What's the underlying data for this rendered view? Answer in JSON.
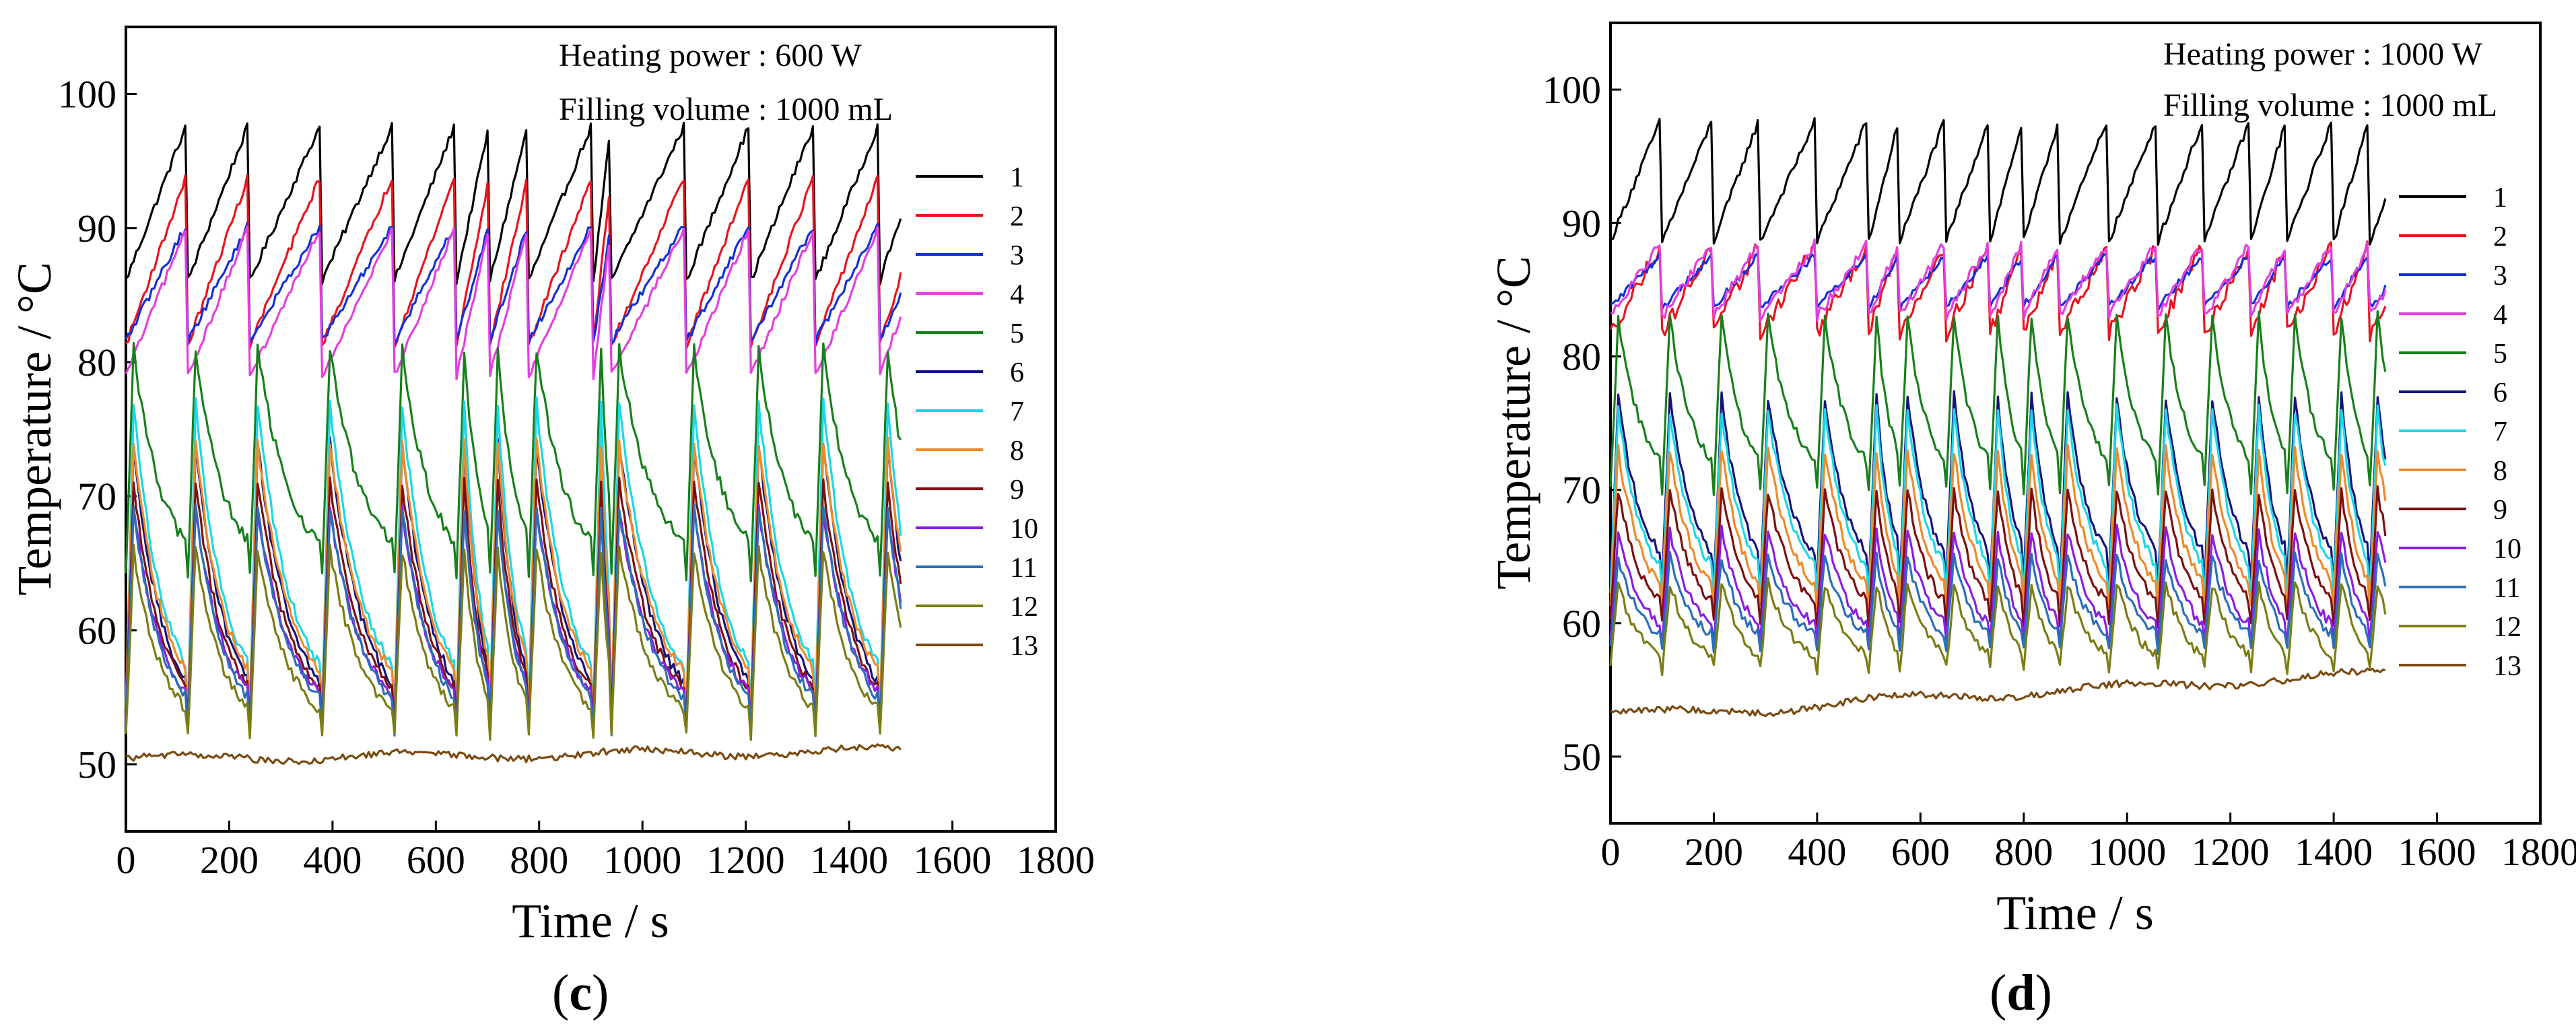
{
  "chart_data": [
    {
      "type": "line",
      "panel_label": "c",
      "annotation_1": "Heating power : 600 W",
      "annotation_2": "Filling volume : 1000 mL",
      "xlabel": "Time / s",
      "ylabel": "Temperature / °C",
      "xlim": [
        0,
        1800
      ],
      "ylim": [
        45,
        105
      ],
      "xticks": [
        0,
        200,
        400,
        600,
        800,
        1000,
        1200,
        1400,
        1600,
        1800
      ],
      "yticks": [
        50,
        60,
        70,
        80,
        90,
        100
      ],
      "legend_position": "right",
      "dt": 5,
      "t_end": 1500,
      "pulses": [
        0,
        120,
        240,
        380,
        520,
        640,
        705,
        780,
        905,
        940,
        1085,
        1210,
        1335,
        1460
      ],
      "series": [
        {
          "name": "1",
          "color": "#000000",
          "peak": 98,
          "base": 84,
          "noise": 0.3
        },
        {
          "name": "2",
          "color": "#e8141e",
          "peak": 95,
          "base": 79,
          "noise": 0.3
        },
        {
          "name": "3",
          "color": "#1230d8",
          "peak": 91,
          "base": 80,
          "noise": 0.3
        },
        {
          "name": "4",
          "color": "#e43ee0",
          "peak": 91,
          "base": 77,
          "noise": 0.3
        },
        {
          "name": "5",
          "color": "#17801c",
          "peak": 81,
          "base": 64,
          "noise": 0.5
        },
        {
          "name": "6",
          "color": "#15137c",
          "peak": 74,
          "base": 53,
          "noise": 0.4
        },
        {
          "name": "7",
          "color": "#19d8e8",
          "peak": 77,
          "base": 54,
          "noise": 0.4
        },
        {
          "name": "8",
          "color": "#ee8a2a",
          "peak": 74,
          "base": 54,
          "noise": 0.4
        },
        {
          "name": "9",
          "color": "#7c1010",
          "peak": 71,
          "base": 53,
          "noise": 0.4
        },
        {
          "name": "10",
          "color": "#8a1ee4",
          "peak": 69,
          "base": 53,
          "noise": 0.4
        },
        {
          "name": "11",
          "color": "#2a6fb8",
          "peak": 69,
          "base": 52.5,
          "noise": 0.4
        },
        {
          "name": "12",
          "color": "#7b7d14",
          "peak": 66,
          "base": 52,
          "noise": 0.4
        },
        {
          "name": "13",
          "color": "#7a4a10",
          "base": 50.4,
          "drift": 0.6,
          "noise": 0.25,
          "flat": true
        }
      ]
    },
    {
      "type": "line",
      "panel_label": "d",
      "annotation_1": "Heating power : 1000 W",
      "annotation_2": "Filling volume : 1000 mL",
      "xlabel": "Time / s",
      "ylabel": "Temperature / °C",
      "xlim": [
        0,
        1800
      ],
      "ylim": [
        45,
        105
      ],
      "xticks": [
        0,
        200,
        400,
        600,
        800,
        1000,
        1200,
        1400,
        1600,
        1800
      ],
      "yticks": [
        50,
        60,
        70,
        80,
        90,
        100
      ],
      "legend_position": "right",
      "dt": 5,
      "t_end": 1500,
      "pulses": [
        0,
        100,
        200,
        290,
        400,
        500,
        560,
        650,
        735,
        800,
        870,
        965,
        1060,
        1150,
        1240,
        1310,
        1400,
        1470
      ],
      "series": [
        {
          "name": "1",
          "color": "#000000",
          "peak": 98,
          "base": 87,
          "noise": 0.3
        },
        {
          "name": "2",
          "color": "#e8141e",
          "peak": 89,
          "base": 80.5,
          "noise": 0.6
        },
        {
          "name": "3",
          "color": "#1230d8",
          "peak": 88,
          "base": 83,
          "noise": 0.3
        },
        {
          "name": "4",
          "color": "#e43ee0",
          "peak": 89,
          "base": 82,
          "noise": 0.4
        },
        {
          "name": "5",
          "color": "#17801c",
          "peak": 83,
          "base": 70,
          "noise": 0.4
        },
        {
          "name": "6",
          "color": "#15137c",
          "peak": 77,
          "base": 63,
          "noise": 0.4
        },
        {
          "name": "7",
          "color": "#19d8e8",
          "peak": 76,
          "base": 62,
          "noise": 0.4
        },
        {
          "name": "8",
          "color": "#ee8a2a",
          "peak": 73,
          "base": 61,
          "noise": 0.4
        },
        {
          "name": "9",
          "color": "#7c1010",
          "peak": 70,
          "base": 60,
          "noise": 0.4
        },
        {
          "name": "10",
          "color": "#8a1ee4",
          "peak": 67,
          "base": 58.5,
          "noise": 0.4
        },
        {
          "name": "11",
          "color": "#2a6fb8",
          "peak": 65,
          "base": 58,
          "noise": 0.4
        },
        {
          "name": "12",
          "color": "#7b7d14",
          "peak": 63,
          "base": 56.5,
          "noise": 0.4
        },
        {
          "name": "13",
          "color": "#7a4a10",
          "base": 53.2,
          "drift": 3.0,
          "noise": 0.25,
          "flat": true
        }
      ]
    }
  ]
}
